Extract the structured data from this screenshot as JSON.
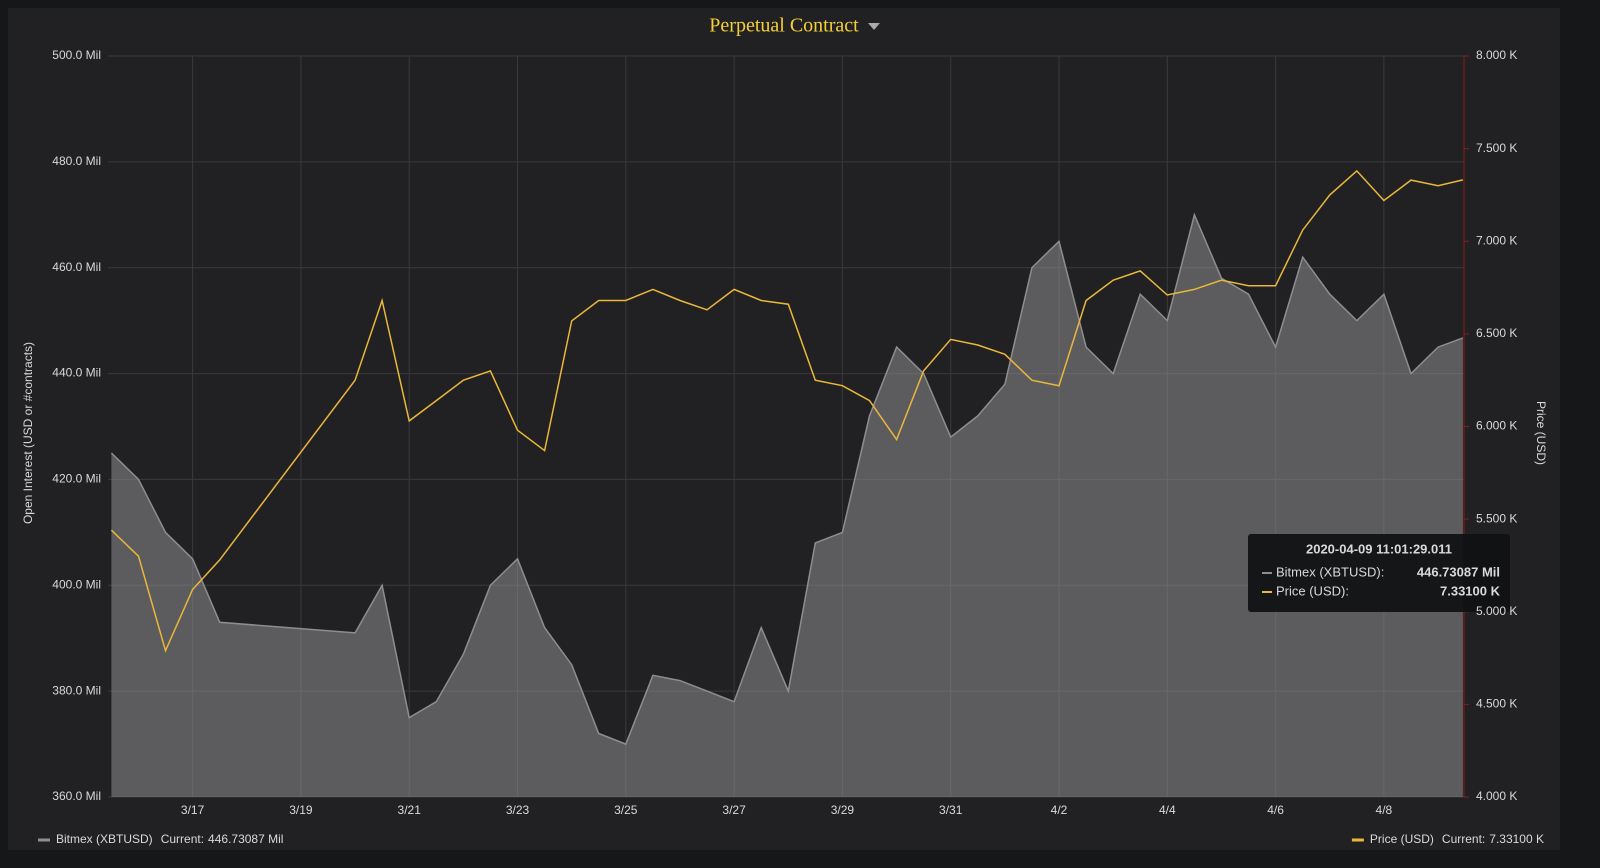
{
  "chart_data": {
    "type": "line",
    "title": "Perpetual Contract",
    "y_label": "Open Interest (USD or #contracts)",
    "y2_label": "Price (USD)",
    "xlim": [
      "2020-03-15 10:30",
      "2020-04-09 11:30"
    ],
    "xticks": [
      {
        "value": "2020-03-17 00:00",
        "label": "3/17"
      },
      {
        "value": "2020-03-19 00:00",
        "label": "3/19"
      },
      {
        "value": "2020-03-21 00:00",
        "label": "3/21"
      },
      {
        "value": "2020-03-23 00:00",
        "label": "3/23"
      },
      {
        "value": "2020-03-25 00:00",
        "label": "3/25"
      },
      {
        "value": "2020-03-27 00:00",
        "label": "3/27"
      },
      {
        "value": "2020-03-29 00:00",
        "label": "3/29"
      },
      {
        "value": "2020-03-31 00:00",
        "label": "3/31"
      },
      {
        "value": "2020-04-02 00:00",
        "label": "4/2"
      },
      {
        "value": "2020-04-04 00:00",
        "label": "4/4"
      },
      {
        "value": "2020-04-06 00:00",
        "label": "4/6"
      },
      {
        "value": "2020-04-08 00:00",
        "label": "4/8"
      }
    ],
    "ylim": [
      360,
      500
    ],
    "yticks": [
      {
        "value": 360,
        "label": "360.0 Mil"
      },
      {
        "value": 380,
        "label": "380.0 Mil"
      },
      {
        "value": 400,
        "label": "400.0 Mil"
      },
      {
        "value": 420,
        "label": "420.0 Mil"
      },
      {
        "value": 440,
        "label": "440.0 Mil"
      },
      {
        "value": 460,
        "label": "460.0 Mil"
      },
      {
        "value": 480,
        "label": "480.0 Mil"
      },
      {
        "value": 500,
        "label": "500.0 Mil"
      }
    ],
    "y2lim": [
      4,
      8
    ],
    "y2ticks": [
      {
        "value": 4,
        "label": "4.000 K"
      },
      {
        "value": 4.5,
        "label": "4.500 K"
      },
      {
        "value": 5,
        "label": "5.000 K"
      },
      {
        "value": 5.5,
        "label": "5.500 K"
      },
      {
        "value": 6,
        "label": "6.000 K"
      },
      {
        "value": 6.5,
        "label": "6.500 K"
      },
      {
        "value": 7,
        "label": "7.000 K"
      },
      {
        "value": 7.5,
        "label": "7.500 K"
      },
      {
        "value": 8,
        "label": "8.000 K"
      }
    ],
    "grid": true,
    "x": [
      "2020-03-15 12:00",
      "2020-03-16 00:00",
      "2020-03-16 12:00",
      "2020-03-17 00:00",
      "2020-03-17 12:00",
      "2020-03-20 00:00",
      "2020-03-20 12:00",
      "2020-03-21 00:00",
      "2020-03-21 12:00",
      "2020-03-22 00:00",
      "2020-03-22 12:00",
      "2020-03-23 00:00",
      "2020-03-23 12:00",
      "2020-03-24 00:00",
      "2020-03-24 12:00",
      "2020-03-25 00:00",
      "2020-03-25 12:00",
      "2020-03-26 00:00",
      "2020-03-26 12:00",
      "2020-03-27 00:00",
      "2020-03-27 12:00",
      "2020-03-28 00:00",
      "2020-03-28 12:00",
      "2020-03-29 00:00",
      "2020-03-29 12:00",
      "2020-03-30 00:00",
      "2020-03-30 12:00",
      "2020-03-31 00:00",
      "2020-03-31 12:00",
      "2020-04-01 00:00",
      "2020-04-01 12:00",
      "2020-04-02 00:00",
      "2020-04-02 12:00",
      "2020-04-03 00:00",
      "2020-04-03 12:00",
      "2020-04-04 00:00",
      "2020-04-04 12:00",
      "2020-04-05 00:00",
      "2020-04-05 12:00",
      "2020-04-06 00:00",
      "2020-04-06 12:00",
      "2020-04-07 00:00",
      "2020-04-07 12:00",
      "2020-04-08 00:00",
      "2020-04-08 12:00",
      "2020-04-09 00:00",
      "2020-04-09 11:01"
    ],
    "current_prefix": "Current:",
    "series": [
      {
        "name": "Bitmex (XBTUSD)",
        "color": "#8e8e90",
        "values": [
          425,
          420,
          410,
          405,
          393,
          391,
          400,
          375,
          378,
          387,
          400,
          405,
          392,
          385,
          372,
          370,
          383,
          382,
          380,
          378,
          392,
          380,
          408,
          410,
          432,
          445,
          440,
          428,
          432,
          438,
          460,
          465,
          445,
          440,
          455,
          450,
          470,
          458,
          455,
          445,
          462,
          455,
          450,
          455,
          440,
          445,
          446.73087
        ],
        "current": 446.73087,
        "current_label": "446.73087 Mil"
      },
      {
        "name": "Price (USD)",
        "color": "#eab839",
        "axis": "y2",
        "values": [
          5.44,
          5.3,
          4.79,
          5.12,
          5.28,
          6.25,
          6.68,
          6.03,
          6.14,
          6.25,
          6.3,
          5.98,
          5.87,
          6.57,
          6.68,
          6.68,
          6.74,
          6.68,
          6.63,
          6.74,
          6.68,
          6.66,
          6.25,
          6.22,
          6.14,
          5.93,
          6.3,
          6.47,
          6.44,
          6.39,
          6.25,
          6.22,
          6.68,
          6.79,
          6.84,
          6.71,
          6.74,
          6.79,
          6.76,
          6.76,
          7.06,
          7.25,
          7.38,
          7.22,
          7.33,
          7.3,
          7.331
        ],
        "current": 7.331,
        "current_label": "7.33100 K"
      }
    ],
    "tooltip": {
      "time": "2020-04-09 11:01:29.011",
      "labels": [
        "Bitmex (XBTUSD):",
        "Price (USD):"
      ]
    }
  }
}
